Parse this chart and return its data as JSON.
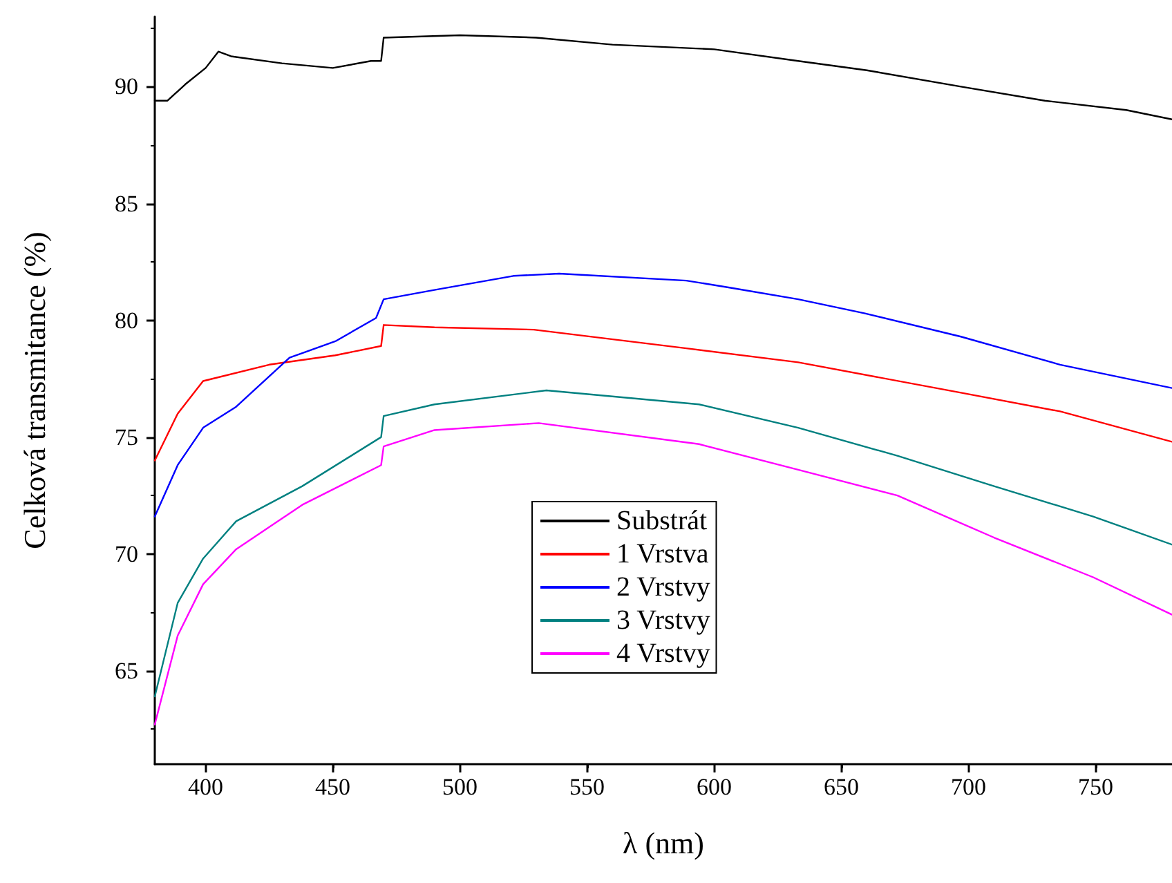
{
  "chart_data": {
    "type": "line",
    "xlabel": "λ (nm)",
    "ylabel": "Celková transmitance (%)",
    "xlim": [
      380,
      780
    ],
    "xticks": [
      400,
      450,
      500,
      550,
      600,
      650,
      700,
      750
    ],
    "ylim": [
      61,
      93
    ],
    "yticks": [
      65,
      70,
      75,
      80,
      85,
      90
    ],
    "grid": false,
    "legend": "bottom",
    "marker": "none",
    "line_style": "solid",
    "series": [
      {
        "name": "Substrát",
        "color": "#000000",
        "x": [
          380,
          385,
          392,
          400,
          405,
          410,
          430,
          450,
          465,
          469,
          470,
          500,
          530,
          560,
          600,
          633,
          660,
          697,
          730,
          762,
          780
        ],
        "values": [
          89.4,
          89.4,
          90.1,
          90.8,
          91.5,
          91.3,
          91.0,
          90.8,
          91.1,
          91.1,
          92.1,
          92.2,
          92.1,
          91.8,
          91.6,
          91.1,
          90.7,
          90.0,
          89.4,
          89.0,
          88.6
        ]
      },
      {
        "name": "1 Vrstva",
        "color": "#ff0000",
        "x": [
          380,
          389,
          399,
          425,
          451,
          469,
          470,
          490,
          529,
          589,
          633,
          697,
          736,
          780
        ],
        "values": [
          74.0,
          76.0,
          77.4,
          78.1,
          78.5,
          78.9,
          79.8,
          79.7,
          79.6,
          78.8,
          78.2,
          76.9,
          76.1,
          74.8
        ]
      },
      {
        "name": "2 Vrstvy",
        "color": "#0000ff",
        "x": [
          380,
          389,
          399,
          412,
          433,
          451,
          467,
          470,
          490,
          521,
          539,
          589,
          606,
          633,
          659,
          697,
          736,
          780
        ],
        "values": [
          71.6,
          73.8,
          75.4,
          76.3,
          78.4,
          79.1,
          80.1,
          80.9,
          81.3,
          81.9,
          82.0,
          81.7,
          81.4,
          80.9,
          80.3,
          79.3,
          78.1,
          77.1
        ]
      },
      {
        "name": "3 Vrstvy",
        "color": "#008080",
        "x": [
          380,
          389,
          399,
          412,
          438,
          469,
          470,
          490,
          534,
          594,
          633,
          672,
          710,
          749,
          780
        ],
        "values": [
          63.9,
          67.9,
          69.8,
          71.4,
          72.9,
          75.0,
          75.9,
          76.4,
          77.0,
          76.4,
          75.4,
          74.2,
          72.9,
          71.6,
          70.4
        ]
      },
      {
        "name": "4 Vrstvy",
        "color": "#ff00ff",
        "x": [
          380,
          389,
          399,
          412,
          438,
          469,
          470,
          490,
          531,
          594,
          633,
          672,
          710,
          749,
          780
        ],
        "values": [
          62.7,
          66.5,
          68.7,
          70.2,
          72.1,
          73.8,
          74.6,
          75.3,
          75.6,
          74.7,
          73.6,
          72.5,
          70.7,
          69.0,
          67.4
        ]
      }
    ]
  }
}
